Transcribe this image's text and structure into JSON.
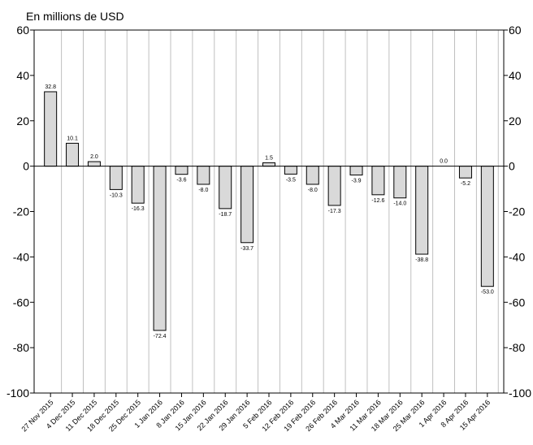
{
  "chart_data": {
    "type": "bar",
    "title": "",
    "ylabel": "En millions de USD",
    "xlabel": "",
    "ylim": [
      -100,
      60
    ],
    "yticks": [
      60,
      40,
      20,
      0,
      -20,
      -40,
      -60,
      -80,
      -100
    ],
    "ytick_labels": [
      "60",
      "40",
      "20",
      "0",
      "-20",
      "-40",
      "-60",
      "-80",
      "-100"
    ],
    "grid": "vertical",
    "categories": [
      "27 Nov 2015",
      "4 Dec 2015",
      "11 Dec 2015",
      "18 Dec 2015",
      "25 Dec 2015",
      "1 Jan 2016",
      "8 Jan 2016",
      "15 Jan 2016",
      "22 Jan 2016",
      "29 Jan 2016",
      "5 Feb 2016",
      "12 Feb 2016",
      "19 Feb 2016",
      "26 Feb 2016",
      "4 Mar 2016",
      "11 Mar 2016",
      "18 Mar 2016",
      "25 Mar 2016",
      "1 Apr 2016",
      "8 Apr 2016",
      "15 Apr 2016"
    ],
    "values": [
      32.8,
      10.1,
      2.0,
      -10.3,
      -16.3,
      -72.4,
      -3.6,
      -8.0,
      -18.7,
      -33.7,
      1.5,
      -3.5,
      -8.0,
      -17.3,
      -3.9,
      -12.6,
      -14.0,
      -38.8,
      0.0,
      -5.2,
      -53.0
    ],
    "value_labels": [
      "32.8",
      "10.1",
      "2.0",
      "-10.3",
      "-16.3",
      "-72.4",
      "-3.6",
      "-8.0",
      "-18.7",
      "-33.7",
      "1.5",
      "-3.5",
      "-8.0",
      "-17.3",
      "-3.9",
      "-12.6",
      "-14.0",
      "-38.8",
      "0.0",
      "-5.2",
      "-53.0"
    ],
    "colors": {
      "bar_fill": "#d9d9d9",
      "bar_stroke": "#000000",
      "grid": "#c0c0c0"
    }
  }
}
